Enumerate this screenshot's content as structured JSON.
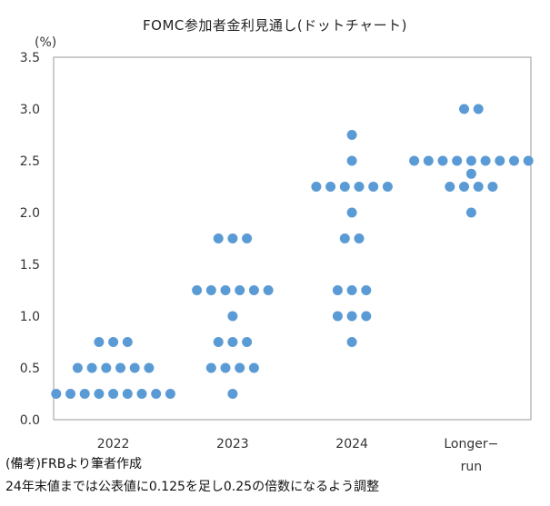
{
  "chart_data": {
    "type": "scatter",
    "title": "FOMC参加者金利見通し(ドットチャート)",
    "ylabel": "(%)",
    "xlabel": "",
    "ylim": [
      0,
      3.5
    ],
    "yticks": [
      "0.0",
      "0.5",
      "1.0",
      "1.5",
      "2.0",
      "2.5",
      "3.0",
      "3.5"
    ],
    "categories": [
      "2022",
      "2023",
      "2024",
      "Longer-\nrun"
    ],
    "category_labels": [
      [
        "2022"
      ],
      [
        "2023"
      ],
      [
        "2024"
      ],
      [
        "Longer−",
        "run"
      ]
    ],
    "grid": false,
    "dot_color": "#5b9bd5",
    "columns": [
      {
        "category": "2022",
        "dots": [
          {
            "y": 0.75,
            "count": 3
          },
          {
            "y": 0.5,
            "count": 6
          },
          {
            "y": 0.25,
            "count": 9
          }
        ]
      },
      {
        "category": "2023",
        "dots": [
          {
            "y": 1.75,
            "count": 3
          },
          {
            "y": 1.25,
            "count": 6
          },
          {
            "y": 1.0,
            "count": 1
          },
          {
            "y": 0.75,
            "count": 3
          },
          {
            "y": 0.5,
            "count": 4
          },
          {
            "y": 0.25,
            "count": 1
          }
        ]
      },
      {
        "category": "2024",
        "dots": [
          {
            "y": 2.75,
            "count": 1
          },
          {
            "y": 2.5,
            "count": 1
          },
          {
            "y": 2.25,
            "count": 6
          },
          {
            "y": 2.0,
            "count": 1
          },
          {
            "y": 1.75,
            "count": 2
          },
          {
            "y": 1.25,
            "count": 3
          },
          {
            "y": 1.0,
            "count": 3
          },
          {
            "y": 0.75,
            "count": 1
          }
        ]
      },
      {
        "category": "Longer-run",
        "dots": [
          {
            "y": 3.0,
            "count": 2
          },
          {
            "y": 2.5,
            "count": 9
          },
          {
            "y": 2.375,
            "count": 1
          },
          {
            "y": 2.25,
            "count": 4
          },
          {
            "y": 2.0,
            "count": 1
          }
        ]
      }
    ]
  },
  "notes": {
    "line1": "(備考)FRBより筆者作成",
    "line2": "24年末値までは公表値に0.125を足し0.25の倍数になるよう調整"
  }
}
